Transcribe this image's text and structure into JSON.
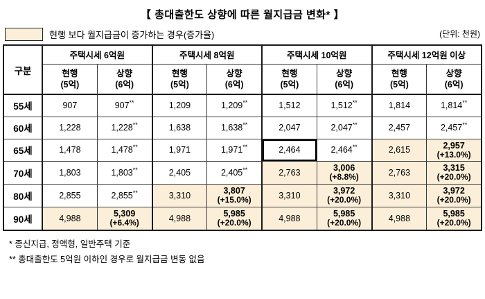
{
  "title": "【 총대출한도 상향에 따른 월지급금 변화* 】",
  "legend": {
    "label": "현행 보다 월지급금이 증가하는 경우(증가율)",
    "unit": "(단위: 천원)"
  },
  "colors": {
    "highlight": "#fcefd9",
    "border_thick": "#1a1a1a",
    "border_thin": "#3a3a3a"
  },
  "table": {
    "corner_label": "구분",
    "groups": [
      {
        "label": "주택시세 6억원",
        "sub": [
          "현행\n(5억)",
          "상향\n(6억)"
        ]
      },
      {
        "label": "주택시세 8억원",
        "sub": [
          "현행\n(5억)",
          "상향\n(6억)"
        ]
      },
      {
        "label": "주택시세 10억원",
        "sub": [
          "현행\n(5억)",
          "상향\n(6억)"
        ]
      },
      {
        "label": "주택시세 12억원 이상",
        "sub": [
          "현행\n(5억)",
          "상향\n(6억)"
        ]
      }
    ],
    "rows": [
      {
        "label": "55세",
        "cells": [
          {
            "v": "907"
          },
          {
            "v": "907",
            "sup": "**"
          },
          {
            "v": "1,209"
          },
          {
            "v": "1,209",
            "sup": "**"
          },
          {
            "v": "1,512"
          },
          {
            "v": "1,512",
            "sup": "**"
          },
          {
            "v": "1,814"
          },
          {
            "v": "1,814",
            "sup": "**"
          }
        ]
      },
      {
        "label": "60세",
        "cells": [
          {
            "v": "1,228"
          },
          {
            "v": "1,228",
            "sup": "**"
          },
          {
            "v": "1,638"
          },
          {
            "v": "1,638",
            "sup": "**"
          },
          {
            "v": "2,047"
          },
          {
            "v": "2,047",
            "sup": "**"
          },
          {
            "v": "2,457"
          },
          {
            "v": "2,457",
            "sup": "**"
          }
        ]
      },
      {
        "label": "65세",
        "cells": [
          {
            "v": "1,478"
          },
          {
            "v": "1,478",
            "sup": "**"
          },
          {
            "v": "1,971"
          },
          {
            "v": "1,971",
            "sup": "**"
          },
          {
            "v": "2,464",
            "box": true
          },
          {
            "v": "2,464",
            "sup": "**"
          },
          {
            "v": "2,615",
            "hl": true
          },
          {
            "v": "2,957",
            "pct": "(+13.0%)",
            "hl": true,
            "bold": true
          }
        ]
      },
      {
        "label": "70세",
        "cells": [
          {
            "v": "1,803"
          },
          {
            "v": "1,803",
            "sup": "**"
          },
          {
            "v": "2,405"
          },
          {
            "v": "2,405",
            "sup": "**"
          },
          {
            "v": "2,763",
            "hl": true
          },
          {
            "v": "3,006",
            "pct": "(+8.8%)",
            "hl": true,
            "bold": true
          },
          {
            "v": "2,763",
            "hl": true
          },
          {
            "v": "3,315",
            "pct": "(+20.0%)",
            "hl": true,
            "bold": true
          }
        ]
      },
      {
        "label": "80세",
        "cells": [
          {
            "v": "2,855"
          },
          {
            "v": "2,855",
            "sup": "**"
          },
          {
            "v": "3,310",
            "hl": true
          },
          {
            "v": "3,807",
            "pct": "(+15.0%)",
            "hl": true,
            "bold": true
          },
          {
            "v": "3,310",
            "hl": true
          },
          {
            "v": "3,972",
            "pct": "(+20.0%)",
            "hl": true,
            "bold": true
          },
          {
            "v": "3,310",
            "hl": true
          },
          {
            "v": "3,972",
            "pct": "(+20.0%)",
            "hl": true,
            "bold": true
          }
        ]
      },
      {
        "label": "90세",
        "cells": [
          {
            "v": "4,988",
            "hl": true
          },
          {
            "v": "5,309",
            "pct": "(+6.4%)",
            "hl": true,
            "bold": true
          },
          {
            "v": "4,988",
            "hl": true
          },
          {
            "v": "5,985",
            "pct": "(+20.0%)",
            "hl": true,
            "bold": true
          },
          {
            "v": "4,988",
            "hl": true
          },
          {
            "v": "5,985",
            "pct": "(+20.0%)",
            "hl": true,
            "bold": true
          },
          {
            "v": "4,988",
            "hl": true
          },
          {
            "v": "5,985",
            "pct": "(+20.0%)",
            "hl": true,
            "bold": true
          }
        ]
      }
    ]
  },
  "footnotes": [
    "* 종신지급, 정액형, 일반주택 기준",
    "** 총대출한도 5억원 이하인 경우로 월지급금 변동 없음"
  ]
}
